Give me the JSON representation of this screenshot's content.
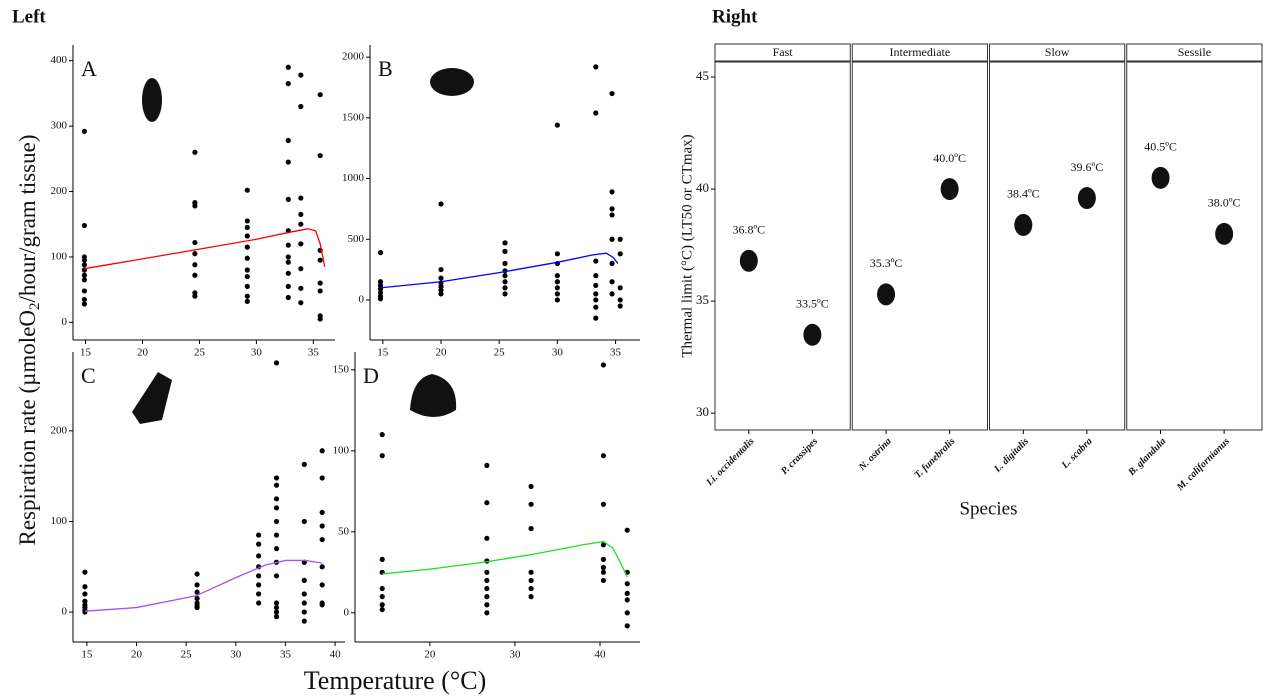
{
  "left_panel": {
    "heading": "Left",
    "ylabel": [
      "Respiration rate (µmoleO",
      "2",
      "/hour/gram tissue)"
    ],
    "xlabel": "Temperature (°C)"
  },
  "chart_data": [
    {
      "type": "scatter",
      "label": "A",
      "point_color": "#000000",
      "fit_color": "#ff0000",
      "xlim": [
        13.9,
        36.9
      ],
      "xticks": [
        15,
        20,
        25,
        30,
        35
      ],
      "ylim": [
        -27,
        424
      ],
      "yticks": [
        0,
        100,
        200,
        300,
        400
      ],
      "x": [
        14.9,
        14.9,
        14.9,
        14.9,
        14.9,
        14.9,
        14.9,
        14.9,
        14.9,
        14.9,
        14.9,
        24.6,
        24.6,
        24.6,
        24.6,
        24.6,
        24.6,
        24.6,
        24.6,
        24.6,
        29.2,
        29.2,
        29.2,
        29.2,
        29.2,
        29.2,
        29.2,
        29.2,
        29.2,
        29.2,
        29.2,
        32.8,
        32.8,
        32.8,
        32.8,
        32.8,
        32.8,
        32.8,
        32.8,
        32.8,
        32.8,
        32.8,
        32.8,
        33.9,
        33.9,
        33.9,
        33.9,
        33.9,
        33.9,
        33.9,
        33.9,
        33.9,
        35.6,
        35.6,
        35.6,
        35.6,
        35.6,
        35.6,
        35.6,
        35.6
      ],
      "y": [
        292,
        148,
        100,
        95,
        88,
        80,
        72,
        65,
        48,
        35,
        28,
        260,
        183,
        178,
        122,
        105,
        88,
        72,
        45,
        40,
        202,
        155,
        145,
        132,
        115,
        98,
        80,
        70,
        55,
        40,
        32,
        390,
        365,
        278,
        245,
        188,
        140,
        118,
        100,
        92,
        75,
        55,
        38,
        378,
        330,
        190,
        165,
        150,
        120,
        82,
        52,
        30,
        348,
        255,
        110,
        95,
        60,
        48,
        10,
        5
      ],
      "fit_x": [
        14.9,
        20,
        25,
        30,
        33,
        34.5,
        35.2,
        35.6,
        36
      ],
      "fit_y": [
        82,
        97,
        112,
        127,
        138,
        143,
        140,
        120,
        85
      ]
    },
    {
      "type": "scatter",
      "label": "B",
      "point_color": "#000000",
      "fit_color": "#0000ff",
      "xlim": [
        13.9,
        37.1
      ],
      "xticks": [
        15,
        20,
        25,
        30,
        35
      ],
      "ylim": [
        -330,
        2100
      ],
      "yticks": [
        0,
        500,
        1000,
        1500,
        2000
      ],
      "x": [
        14.8,
        14.8,
        14.8,
        14.8,
        14.8,
        14.8,
        14.8,
        20,
        20,
        20,
        20,
        20,
        20,
        20,
        25.5,
        25.5,
        25.5,
        25.5,
        25.5,
        25.5,
        25.5,
        25.5,
        30,
        30,
        30,
        30,
        30,
        30,
        30,
        30,
        33.3,
        33.3,
        33.3,
        33.3,
        33.3,
        33.3,
        33.3,
        33.3,
        33.3,
        34.7,
        34.7,
        34.7,
        34.7,
        34.7,
        34.7,
        34.7,
        34.7,
        35.4,
        35.4,
        35.4,
        35.4,
        35.4
      ],
      "y": [
        390,
        150,
        120,
        90,
        60,
        30,
        10,
        790,
        250,
        180,
        140,
        110,
        80,
        50,
        470,
        400,
        300,
        240,
        200,
        150,
        100,
        50,
        1440,
        380,
        300,
        200,
        150,
        100,
        50,
        0,
        1920,
        1540,
        320,
        200,
        120,
        50,
        0,
        -60,
        -150,
        1700,
        890,
        750,
        700,
        500,
        300,
        150,
        50,
        500,
        380,
        100,
        0,
        -50
      ],
      "fit_x": [
        14.8,
        20,
        25,
        30,
        33,
        34.2,
        34.8,
        35.2
      ],
      "fit_y": [
        100,
        150,
        225,
        310,
        370,
        385,
        350,
        300
      ]
    },
    {
      "type": "scatter",
      "label": "C",
      "point_color": "#000000",
      "fit_color": "#b04cf0",
      "xlim": [
        13.6,
        41.0
      ],
      "xticks": [
        15,
        20,
        25,
        30,
        35,
        40
      ],
      "ylim": [
        -33,
        287
      ],
      "yticks": [
        0,
        100,
        200
      ],
      "x": [
        14.8,
        14.8,
        14.8,
        14.8,
        14.8,
        14.8,
        14.8,
        14.8,
        26.1,
        26.1,
        26.1,
        26.1,
        26.1,
        26.1,
        26.1,
        32.3,
        32.3,
        32.3,
        32.3,
        32.3,
        32.3,
        32.3,
        32.3,
        34.1,
        34.1,
        34.1,
        34.1,
        34.1,
        34.1,
        34.1,
        34.1,
        34.1,
        34.1,
        34.1,
        34.1,
        34.1,
        34.1,
        36.9,
        36.9,
        36.9,
        36.9,
        36.9,
        36.9,
        36.9,
        36.9,
        38.7,
        38.7,
        38.7,
        38.7,
        38.7,
        38.7,
        38.7,
        38.7,
        38.7
      ],
      "y": [
        44,
        28,
        20,
        12,
        8,
        5,
        2,
        0,
        42,
        30,
        22,
        15,
        10,
        7,
        5,
        85,
        75,
        62,
        50,
        40,
        30,
        20,
        10,
        275,
        148,
        140,
        125,
        115,
        100,
        85,
        70,
        55,
        40,
        10,
        5,
        0,
        -5,
        163,
        100,
        55,
        35,
        20,
        10,
        0,
        -10,
        178,
        148,
        110,
        95,
        80,
        50,
        30,
        10,
        8
      ],
      "fit_x": [
        14.8,
        20,
        26,
        30,
        33,
        35,
        37,
        38.7
      ],
      "fit_y": [
        1,
        5,
        18,
        38,
        52,
        57,
        57,
        54
      ]
    },
    {
      "type": "scatter",
      "label": "D",
      "point_color": "#000000",
      "fit_color": "#22dd22",
      "xlim": [
        11.2,
        44.7
      ],
      "xticks": [
        20,
        30,
        40
      ],
      "ylim": [
        -18,
        161
      ],
      "yticks": [
        0,
        50,
        100,
        150
      ],
      "x": [
        14.4,
        14.4,
        14.4,
        14.4,
        14.4,
        14.4,
        14.4,
        14.4,
        26.7,
        26.7,
        26.7,
        26.7,
        26.7,
        26.7,
        26.7,
        26.7,
        26.7,
        26.7,
        31.9,
        31.9,
        31.9,
        31.9,
        31.9,
        31.9,
        31.9,
        40.4,
        40.4,
        40.4,
        40.4,
        40.4,
        40.4,
        40.4,
        40.4,
        43.2,
        43.2,
        43.2,
        43.2,
        43.2,
        43.2,
        43.2
      ],
      "y": [
        110,
        97,
        33,
        25,
        15,
        10,
        5,
        2,
        91,
        68,
        46,
        32,
        25,
        20,
        15,
        10,
        5,
        0,
        78,
        67,
        52,
        25,
        20,
        15,
        10,
        153,
        97,
        67,
        42,
        33,
        28,
        25,
        20,
        51,
        25,
        18,
        12,
        8,
        0,
        -8
      ],
      "fit_x": [
        14.4,
        20,
        26,
        32,
        38,
        40.4,
        41.5,
        42.5,
        43.2
      ],
      "fit_y": [
        24,
        27,
        31,
        36,
        42,
        44,
        40,
        30,
        22
      ]
    },
    {
      "type": "strip",
      "title": "Right",
      "ylabel": "Thermal limit (°C) (LT50 or CTmax)",
      "xlabel": "Species",
      "ylim": [
        29.25,
        45.67
      ],
      "yticks": [
        30,
        35,
        40,
        45
      ],
      "color": "#111111",
      "facets": [
        {
          "name": "Fast",
          "categories": [
            "Li. occidentalis",
            "P. crassipes"
          ],
          "values": [
            36.8,
            33.5
          ],
          "value_labels": [
            "36.8ºC",
            "33.5ºC"
          ]
        },
        {
          "name": "Intermediate",
          "categories": [
            "N. ostrina",
            "T. funebralis"
          ],
          "values": [
            35.3,
            40.0
          ],
          "value_labels": [
            "35.3ºC",
            "40.0ºC"
          ]
        },
        {
          "name": "Slow",
          "categories": [
            "L. digitalis",
            "L. scabra"
          ],
          "values": [
            38.4,
            39.6
          ],
          "value_labels": [
            "38.4ºC",
            "39.6ºC"
          ]
        },
        {
          "name": "Sessile",
          "categories": [
            "B. glandula",
            "M. californianus"
          ],
          "values": [
            40.5,
            38.0
          ],
          "value_labels": [
            "40.5ºC",
            "38.0ºC"
          ]
        }
      ]
    }
  ]
}
